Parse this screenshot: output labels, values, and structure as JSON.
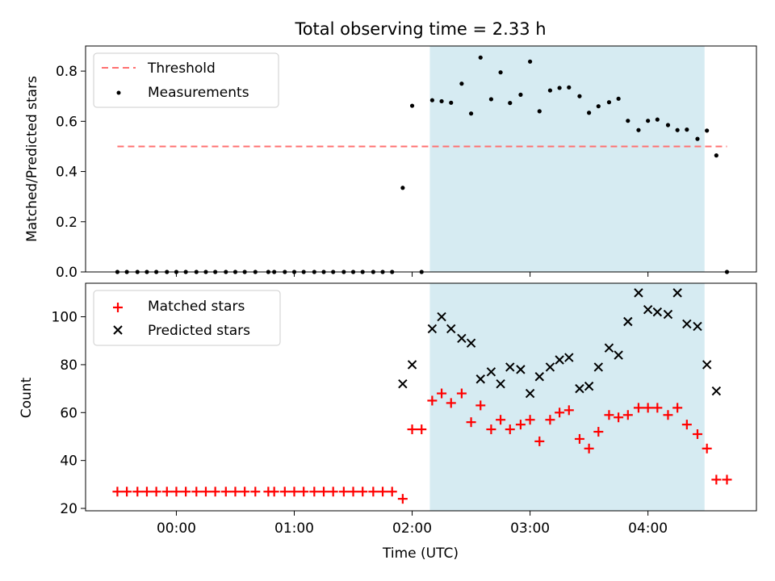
{
  "title": "Total observing time = 2.33 h",
  "colors": {
    "threshold": "#ff7070",
    "measurement": "#000000",
    "matched": "#ff0000",
    "predicted": "#000000",
    "span": "#add8e6"
  },
  "chart_data": [
    {
      "type": "scatter",
      "title": "Total observing time = 2.33 h",
      "ylabel": "Matched/Predicted stars",
      "xlabel": "",
      "x_unit": "hours UTC (decimal)",
      "xlim": [
        -0.77,
        4.92
      ],
      "ylim": [
        0,
        0.9
      ],
      "yticks": [
        0.0,
        0.2,
        0.4,
        0.6,
        0.8
      ],
      "ytick_labels": [
        "0.0",
        "0.2",
        "0.4",
        "0.6",
        "0.8"
      ],
      "shaded_span": [
        2.15,
        4.48
      ],
      "legend_position": "upper left",
      "threshold": {
        "name": "Threshold",
        "y": 0.5,
        "x": [
          -0.5,
          4.67
        ]
      },
      "series": [
        {
          "name": "Measurements",
          "x": [
            -0.5,
            -0.42,
            -0.33,
            -0.25,
            -0.17,
            -0.08,
            0.0,
            0.08,
            0.17,
            0.25,
            0.33,
            0.42,
            0.5,
            0.58,
            0.67,
            0.78,
            0.83,
            0.92,
            1.0,
            1.08,
            1.17,
            1.25,
            1.33,
            1.42,
            1.5,
            1.58,
            1.67,
            1.75,
            1.83,
            1.92,
            2.0,
            2.08,
            2.17,
            2.25,
            2.33,
            2.42,
            2.5,
            2.58,
            2.67,
            2.75,
            2.83,
            2.92,
            3.0,
            3.08,
            3.17,
            3.25,
            3.33,
            3.42,
            3.5,
            3.58,
            3.67,
            3.75,
            3.83,
            3.92,
            4.0,
            4.08,
            4.17,
            4.25,
            4.33,
            4.42,
            4.5,
            4.58,
            4.67
          ],
          "y": [
            0,
            0,
            0,
            0,
            0,
            0,
            0,
            0,
            0,
            0,
            0,
            0,
            0,
            0,
            0,
            0,
            0,
            0,
            0,
            0,
            0,
            0,
            0,
            0,
            0,
            0,
            0,
            0,
            0,
            0.335,
            0.662,
            0,
            0.684,
            0.68,
            0.674,
            0.75,
            0.631,
            0.854,
            0.688,
            0.795,
            0.673,
            0.706,
            0.838,
            0.64,
            0.723,
            0.733,
            0.735,
            0.7,
            0.634,
            0.66,
            0.676,
            0.69,
            0.602,
            0.565,
            0.602,
            0.607,
            0.585,
            0.565,
            0.567,
            0.53,
            0.563,
            0.464,
            0
          ]
        }
      ]
    },
    {
      "type": "scatter",
      "xlabel": "Time (UTC)",
      "ylabel": "Count",
      "xlim": [
        -0.77,
        4.92
      ],
      "ylim": [
        19,
        114
      ],
      "xticks": [
        0,
        1,
        2,
        3,
        4
      ],
      "xtick_labels": [
        "00:00",
        "01:00",
        "02:00",
        "03:00",
        "04:00"
      ],
      "yticks": [
        20,
        40,
        60,
        80,
        100
      ],
      "ytick_labels": [
        "20",
        "40",
        "60",
        "80",
        "100"
      ],
      "shaded_span": [
        2.15,
        4.48
      ],
      "legend_position": "upper left",
      "series": [
        {
          "name": "Matched stars",
          "marker": "plus",
          "x": [
            -0.5,
            -0.42,
            -0.33,
            -0.25,
            -0.17,
            -0.08,
            0.0,
            0.08,
            0.17,
            0.25,
            0.33,
            0.42,
            0.5,
            0.58,
            0.67,
            0.78,
            0.83,
            0.92,
            1.0,
            1.08,
            1.17,
            1.25,
            1.33,
            1.42,
            1.5,
            1.58,
            1.67,
            1.75,
            1.83,
            1.92,
            2.0,
            2.08,
            2.17,
            2.25,
            2.33,
            2.42,
            2.5,
            2.58,
            2.67,
            2.75,
            2.83,
            2.92,
            3.0,
            3.08,
            3.17,
            3.25,
            3.33,
            3.42,
            3.5,
            3.58,
            3.67,
            3.75,
            3.83,
            3.92,
            4.0,
            4.08,
            4.17,
            4.25,
            4.33,
            4.42,
            4.5,
            4.58,
            4.67
          ],
          "y": [
            27,
            27,
            27,
            27,
            27,
            27,
            27,
            27,
            27,
            27,
            27,
            27,
            27,
            27,
            27,
            27,
            27,
            27,
            27,
            27,
            27,
            27,
            27,
            27,
            27,
            27,
            27,
            27,
            27,
            24,
            53,
            53,
            65,
            68,
            64,
            68,
            56,
            63,
            53,
            57,
            53,
            55,
            57,
            48,
            57,
            60,
            61,
            49,
            45,
            52,
            59,
            58,
            59,
            62,
            62,
            62,
            59,
            62,
            55,
            51,
            45,
            32,
            32
          ]
        },
        {
          "name": "Predicted stars",
          "marker": "x",
          "x": [
            1.92,
            2.0,
            2.17,
            2.25,
            2.33,
            2.42,
            2.5,
            2.58,
            2.67,
            2.75,
            2.83,
            2.92,
            3.0,
            3.08,
            3.17,
            3.25,
            3.33,
            3.42,
            3.5,
            3.58,
            3.67,
            3.75,
            3.83,
            3.92,
            4.0,
            4.08,
            4.17,
            4.25,
            4.33,
            4.42,
            4.5,
            4.58
          ],
          "y": [
            72,
            80,
            95,
            100,
            95,
            91,
            89,
            74,
            77,
            72,
            79,
            78,
            68,
            75,
            79,
            82,
            83,
            70,
            71,
            79,
            87,
            84,
            98,
            110,
            103,
            102,
            101,
            110,
            97,
            96,
            80,
            69
          ]
        }
      ]
    }
  ]
}
